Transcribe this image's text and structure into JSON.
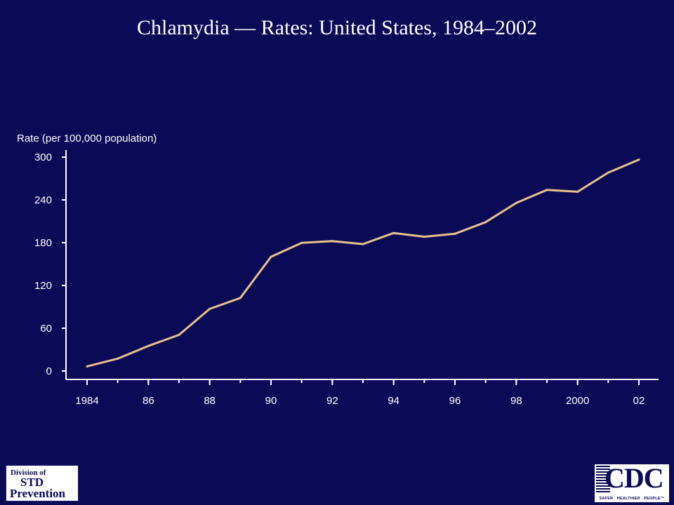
{
  "title": "Chlamydia — Rates: United States, 1984–2002",
  "colors": {
    "background": "#0a0a56",
    "line": "#e8c28c",
    "axis": "#ffffff",
    "text": "#ffffff"
  },
  "logos": {
    "std": {
      "line1": "Division of",
      "line2": "STD",
      "line3": "Prevention"
    },
    "cdc": {
      "name": "CDC",
      "tagline": "SAFER · HEALTHIER · PEOPLE™"
    }
  },
  "chart_data": {
    "type": "line",
    "title": "",
    "xlabel": "",
    "ylabel": "Rate (per 100,000 population)",
    "x": [
      1984,
      1985,
      1986,
      1987,
      1988,
      1989,
      1990,
      1991,
      1992,
      1993,
      1994,
      1995,
      1996,
      1997,
      1998,
      1999,
      2000,
      2001,
      2002
    ],
    "xticks": [
      1984,
      1986,
      1988,
      1990,
      1992,
      1994,
      1996,
      1998,
      2000,
      2002
    ],
    "xtick_labels": [
      "1984",
      "86",
      "88",
      "90",
      "92",
      "94",
      "96",
      "98",
      "2000",
      "02"
    ],
    "yticks": [
      0,
      60,
      120,
      180,
      240,
      300
    ],
    "xlim": [
      1983.35,
      2002.6
    ],
    "ylim": [
      0,
      300
    ],
    "grid": false,
    "legend": "none",
    "series": [
      {
        "values": [
          6.5,
          17.4,
          35.2,
          50.8,
          87.1,
          102.5,
          160.2,
          179.7,
          182.3,
          178.0,
          193.6,
          188.4,
          192.5,
          208.8,
          235.7,
          254.1,
          251.4,
          278.3,
          296.5
        ]
      }
    ]
  }
}
